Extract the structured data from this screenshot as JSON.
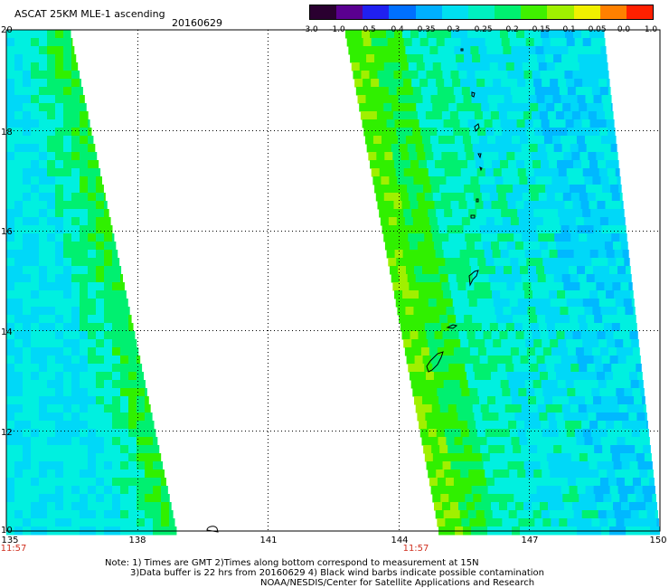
{
  "header": {
    "title": "ASCAT 25KM MLE-1 ascending",
    "date": "20160629"
  },
  "colorbar": {
    "labels": [
      "-3.0",
      "-1.0",
      "-0.5",
      "-0.4",
      "-0.35",
      "-0.3",
      "-0.25",
      "-0.2",
      "-0.15",
      "-0.1",
      "-0.05",
      "0.0",
      "1.0"
    ],
    "colors": [
      "#2a0030",
      "#5a0090",
      "#2020f0",
      "#0070ff",
      "#00b0ff",
      "#00e0f0",
      "#00f0c0",
      "#00f070",
      "#40f000",
      "#a0f000",
      "#f0f000",
      "#ff8000",
      "#ff2000"
    ]
  },
  "axes": {
    "y_labels": [
      "20",
      "18",
      "16",
      "14",
      "12",
      "10"
    ],
    "x_labels": [
      "135",
      "138",
      "141",
      "144",
      "147",
      "150"
    ],
    "time_labels": [
      "11:57",
      "11:57"
    ]
  },
  "notes": {
    "line1": "Note: 1) Times are GMT 2)Times along bottom correspond to measurement at 15N",
    "line2": "3)Data buffer is 22 hrs from 20160629 4) Black wind barbs indicate possible contamination",
    "line3": "NOAA/NESDIS/Center for Satellite Applications and Research"
  },
  "map": {
    "lon_range": [
      135,
      150
    ],
    "lat_range": [
      10,
      20
    ],
    "grid": true,
    "palette": {
      "cyan": "#00f0e0",
      "light_blue": "#00d8f8",
      "blue": "#00b8ff",
      "green": "#00f070",
      "bright_green": "#30f000",
      "yellow_green": "#a0f000"
    }
  }
}
